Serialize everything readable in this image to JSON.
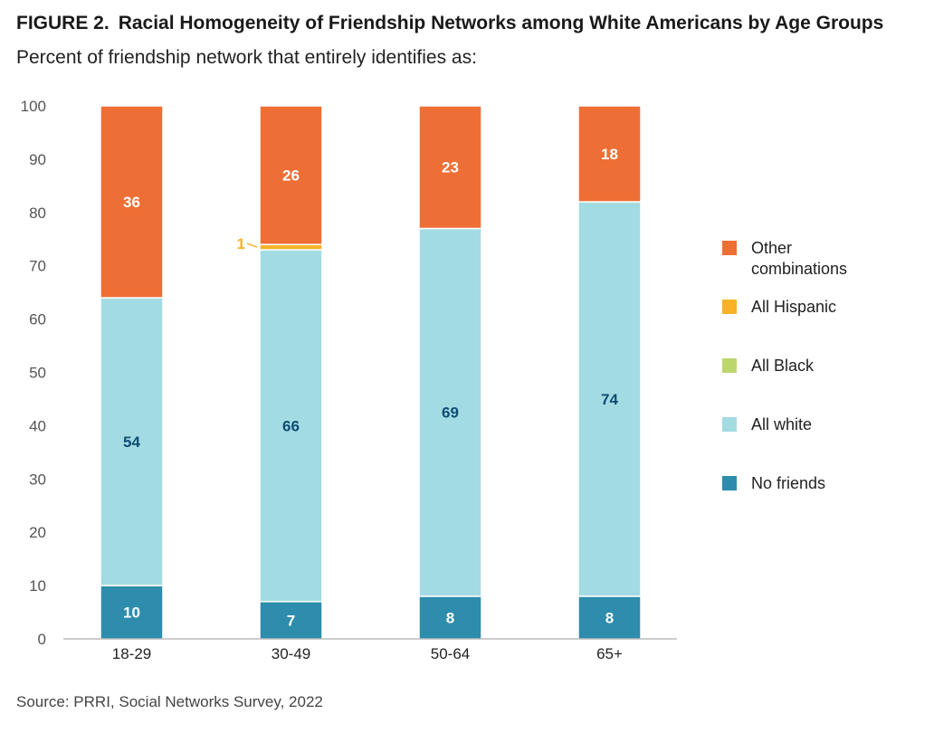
{
  "figure": {
    "label": "FIGURE 2.",
    "title": "Racial Homogeneity of Friendship Networks among White Americans by Age Groups",
    "subtitle": "Percent of friendship network that entirely identifies as:",
    "source": "Source: PRRI, Social Networks Survey, 2022"
  },
  "chart_data": {
    "type": "bar",
    "stacked": true,
    "categories": [
      "18-29",
      "30-49",
      "50-64",
      "65+"
    ],
    "ylim": [
      0,
      100
    ],
    "yticks": [
      0,
      10,
      20,
      30,
      40,
      50,
      60,
      70,
      80,
      90,
      100
    ],
    "legend_position": "right",
    "series": [
      {
        "name": "No friends",
        "color": "#2e8cac",
        "values": [
          10,
          7,
          8,
          8
        ],
        "label_color": "#ffffff"
      },
      {
        "name": "All white",
        "color": "#a3dbe3",
        "values": [
          54,
          66,
          69,
          74
        ],
        "label_color": "#0f4c73"
      },
      {
        "name": "All Black",
        "color": "#bcd66d",
        "values": [
          0,
          0,
          0,
          0
        ],
        "label_color": "#0f4c73"
      },
      {
        "name": "All Hispanic",
        "color": "#f7b228",
        "values": [
          0,
          1,
          0,
          0
        ],
        "label_color": "#f7b228"
      },
      {
        "name": "Other combinations",
        "color": "#ee6f35",
        "values": [
          36,
          26,
          23,
          18
        ],
        "label_color": "#ffffff"
      }
    ],
    "legend_order": [
      "Other combinations",
      "All Hispanic",
      "All Black",
      "All white",
      "No friends"
    ],
    "legend_lines": {
      "Other combinations": [
        "Other",
        "combinations"
      ]
    }
  }
}
